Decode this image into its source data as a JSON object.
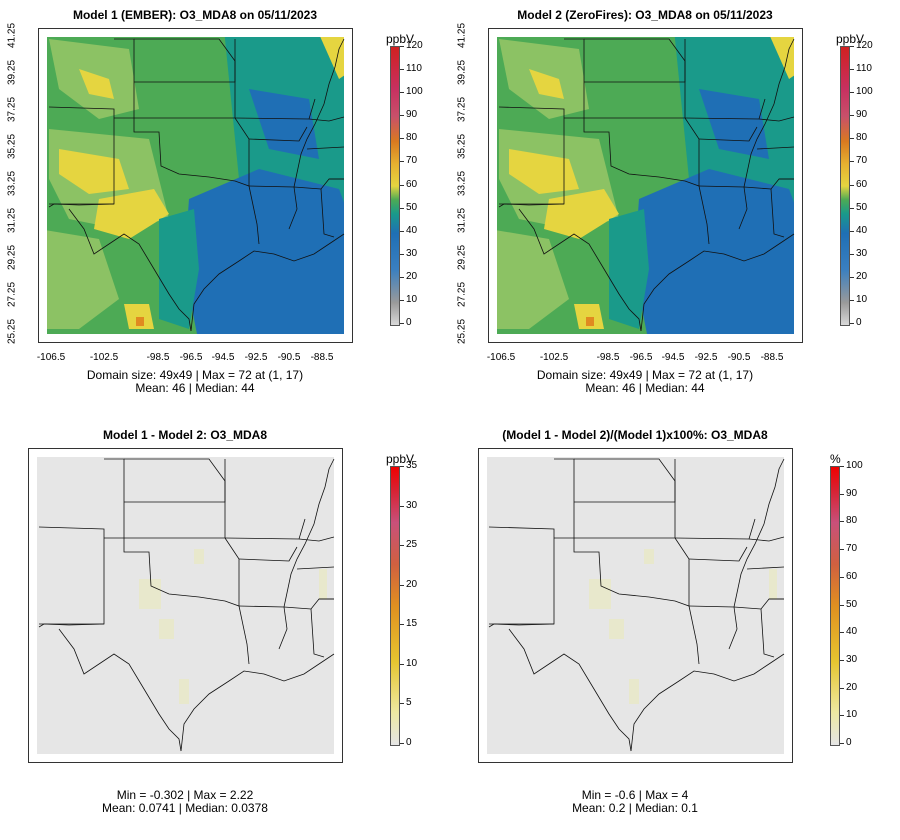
{
  "panels": [
    {
      "title": "Model 1 (EMBER): O3_MDA8 on 05/11/2023",
      "unit": "ppbV",
      "stats_line1": "Domain size: 49x49 | Max = 72 at (1, 17)",
      "stats_line2": "Mean: 46 |  Median: 44",
      "cbar_ticks": [
        "120",
        "110",
        "100",
        "90",
        "80",
        "70",
        "60",
        "50",
        "40",
        "30",
        "20",
        "10",
        "0"
      ],
      "show_axes": true,
      "field": "ozone"
    },
    {
      "title": "Model 2 (ZeroFires): O3_MDA8 on 05/11/2023",
      "unit": "ppbV",
      "stats_line1": "Domain size: 49x49 | Max = 72 at (1, 17)",
      "stats_line2": "Mean: 46 |  Median: 44",
      "cbar_ticks": [
        "120",
        "110",
        "100",
        "90",
        "80",
        "70",
        "60",
        "50",
        "40",
        "30",
        "20",
        "10",
        "0"
      ],
      "show_axes": true,
      "field": "ozone"
    },
    {
      "title": "Model 1 - Model 2: O3_MDA8",
      "unit": "ppbV",
      "stats_line1": "Min = -0.302 | Max = 2.22",
      "stats_line2": "Mean: 0.0741 |  Median: 0.0378",
      "cbar_ticks": [
        "35",
        "30",
        "25",
        "20",
        "15",
        "10",
        "5",
        "0"
      ],
      "show_axes": false,
      "field": "diff"
    },
    {
      "title": "(Model 1 - Model 2)/(Model 1)x100%: O3_MDA8",
      "unit": "%",
      "stats_line1": "Min = -0.6 | Max = 4",
      "stats_line2": "Mean: 0.2 |  Median: 0.1",
      "cbar_ticks": [
        "100",
        "90",
        "80",
        "70",
        "60",
        "50",
        "40",
        "30",
        "20",
        "10",
        "0"
      ],
      "show_axes": false,
      "field": "diff"
    }
  ],
  "y_ticks": [
    "41.25",
    "39.25",
    "37.25",
    "35.25",
    "33.25",
    "31.25",
    "29.25",
    "27.25",
    "25.25"
  ],
  "x_ticks": [
    "-106.5",
    "-102.5",
    "-98.5",
    "-96.5",
    "-94.5",
    "-92.5",
    "-90.5",
    "-88.5"
  ],
  "colors": {
    "blue": "#1f6fb5",
    "teal": "#1a9a8a",
    "green": "#4daa55",
    "lightgreen": "#8cc264",
    "yellow": "#e5d540",
    "orange": "#e08a20",
    "red": "#d22020",
    "grey": "#e6e6e6",
    "palegreen": "#e8e8cc"
  }
}
